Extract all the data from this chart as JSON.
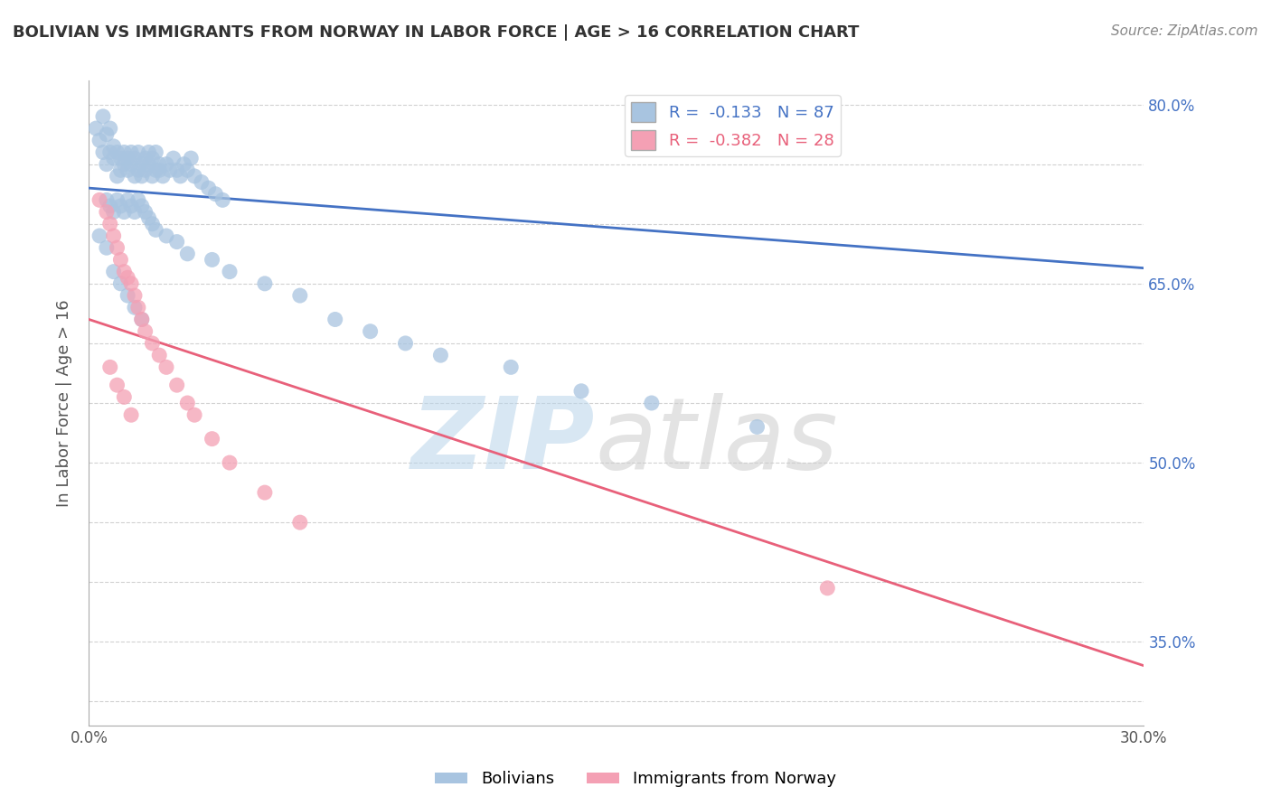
{
  "title": "BOLIVIAN VS IMMIGRANTS FROM NORWAY IN LABOR FORCE | AGE > 16 CORRELATION CHART",
  "source_text": "Source: ZipAtlas.com",
  "ylabel": "In Labor Force | Age > 16",
  "x_min": 0.0,
  "x_max": 0.3,
  "y_min": 0.28,
  "y_max": 0.82,
  "bolivians_color": "#a8c4e0",
  "norway_color": "#f4a0b4",
  "bolivians_line_color": "#4472c4",
  "norway_line_color": "#e8607a",
  "R_bolivians": -0.133,
  "N_bolivians": 87,
  "R_norway": -0.382,
  "N_norway": 28,
  "background_color": "#ffffff",
  "grid_color": "#cccccc",
  "bolivians_trend_x": [
    0.0,
    0.3
  ],
  "bolivians_trend_y": [
    0.73,
    0.663
  ],
  "norway_trend_x": [
    0.0,
    0.3
  ],
  "norway_trend_y": [
    0.62,
    0.33
  ],
  "bolivians_scatter_x": [
    0.002,
    0.003,
    0.004,
    0.004,
    0.005,
    0.005,
    0.006,
    0.006,
    0.007,
    0.007,
    0.008,
    0.008,
    0.009,
    0.009,
    0.01,
    0.01,
    0.011,
    0.011,
    0.012,
    0.012,
    0.013,
    0.013,
    0.014,
    0.014,
    0.015,
    0.015,
    0.016,
    0.016,
    0.017,
    0.017,
    0.018,
    0.018,
    0.019,
    0.019,
    0.02,
    0.02,
    0.021,
    0.022,
    0.023,
    0.024,
    0.025,
    0.026,
    0.027,
    0.028,
    0.029,
    0.03,
    0.032,
    0.034,
    0.036,
    0.038,
    0.005,
    0.006,
    0.007,
    0.008,
    0.009,
    0.01,
    0.011,
    0.012,
    0.013,
    0.014,
    0.015,
    0.016,
    0.017,
    0.018,
    0.019,
    0.022,
    0.025,
    0.028,
    0.035,
    0.04,
    0.05,
    0.06,
    0.07,
    0.08,
    0.09,
    0.1,
    0.12,
    0.14,
    0.16,
    0.19,
    0.003,
    0.005,
    0.007,
    0.009,
    0.011,
    0.013,
    0.015
  ],
  "bolivians_scatter_y": [
    0.78,
    0.77,
    0.76,
    0.79,
    0.75,
    0.775,
    0.76,
    0.78,
    0.755,
    0.765,
    0.76,
    0.74,
    0.755,
    0.745,
    0.75,
    0.76,
    0.755,
    0.745,
    0.75,
    0.76,
    0.74,
    0.755,
    0.745,
    0.76,
    0.75,
    0.74,
    0.755,
    0.745,
    0.75,
    0.76,
    0.74,
    0.755,
    0.745,
    0.76,
    0.75,
    0.745,
    0.74,
    0.75,
    0.745,
    0.755,
    0.745,
    0.74,
    0.75,
    0.745,
    0.755,
    0.74,
    0.735,
    0.73,
    0.725,
    0.72,
    0.72,
    0.715,
    0.71,
    0.72,
    0.715,
    0.71,
    0.72,
    0.715,
    0.71,
    0.72,
    0.715,
    0.71,
    0.705,
    0.7,
    0.695,
    0.69,
    0.685,
    0.675,
    0.67,
    0.66,
    0.65,
    0.64,
    0.62,
    0.61,
    0.6,
    0.59,
    0.58,
    0.56,
    0.55,
    0.53,
    0.69,
    0.68,
    0.66,
    0.65,
    0.64,
    0.63,
    0.62
  ],
  "norway_scatter_x": [
    0.003,
    0.005,
    0.006,
    0.007,
    0.008,
    0.009,
    0.01,
    0.011,
    0.012,
    0.013,
    0.014,
    0.015,
    0.016,
    0.018,
    0.02,
    0.022,
    0.025,
    0.028,
    0.03,
    0.035,
    0.04,
    0.05,
    0.06,
    0.006,
    0.008,
    0.01,
    0.012,
    0.21
  ],
  "norway_scatter_y": [
    0.72,
    0.71,
    0.7,
    0.69,
    0.68,
    0.67,
    0.66,
    0.655,
    0.65,
    0.64,
    0.63,
    0.62,
    0.61,
    0.6,
    0.59,
    0.58,
    0.565,
    0.55,
    0.54,
    0.52,
    0.5,
    0.475,
    0.45,
    0.58,
    0.565,
    0.555,
    0.54,
    0.395
  ]
}
